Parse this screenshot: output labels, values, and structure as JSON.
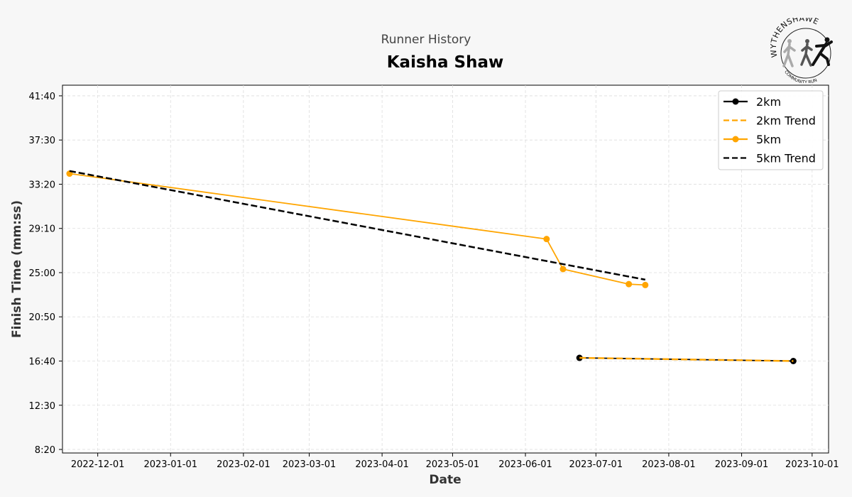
{
  "supertitle": "Runner History",
  "logo": {
    "text_top": "WYTHENSHAWE",
    "text_bottom": "COMMUNITY RUN"
  },
  "chart_data": {
    "type": "line",
    "title": "Kaisha Shaw",
    "xlabel": "Date",
    "ylabel": "Finish Time (mm:ss)",
    "x_ticks": [
      "2022-12-01",
      "2023-01-01",
      "2023-02-01",
      "2023-03-01",
      "2023-04-01",
      "2023-05-01",
      "2023-06-01",
      "2023-07-01",
      "2023-08-01",
      "2023-09-01",
      "2023-10-01"
    ],
    "y_ticks": [
      "8:20",
      "12:30",
      "16:40",
      "20:50",
      "25:00",
      "29:10",
      "33:20",
      "37:30",
      "41:40"
    ],
    "xlim": [
      "2022-11-16",
      "2023-10-08"
    ],
    "ylim": [
      "8:00",
      "42:40"
    ],
    "grid": true,
    "legend_position": "top-right",
    "series": [
      {
        "name": "2km",
        "style": "solid",
        "marker": "circle",
        "color": "#000000",
        "points": [
          [
            "2023-06-24",
            "16:58"
          ],
          [
            "2023-09-23",
            "16:40"
          ]
        ]
      },
      {
        "name": "2km Trend",
        "style": "dashed",
        "marker": "none",
        "color": "#FFA500",
        "points": [
          [
            "2023-06-24",
            "16:58"
          ],
          [
            "2023-09-23",
            "16:40"
          ]
        ]
      },
      {
        "name": "5km",
        "style": "solid",
        "marker": "circle",
        "color": "#FFA500",
        "points": [
          [
            "2022-11-19",
            "34:20"
          ],
          [
            "2023-06-10",
            "28:10"
          ],
          [
            "2023-06-17",
            "25:20"
          ],
          [
            "2023-07-15",
            "23:55"
          ],
          [
            "2023-07-22",
            "23:50"
          ]
        ]
      },
      {
        "name": "5km Trend",
        "style": "dashed",
        "marker": "none",
        "color": "#000000",
        "points": [
          [
            "2022-11-19",
            "34:35"
          ],
          [
            "2023-07-22",
            "24:20"
          ]
        ]
      }
    ]
  }
}
